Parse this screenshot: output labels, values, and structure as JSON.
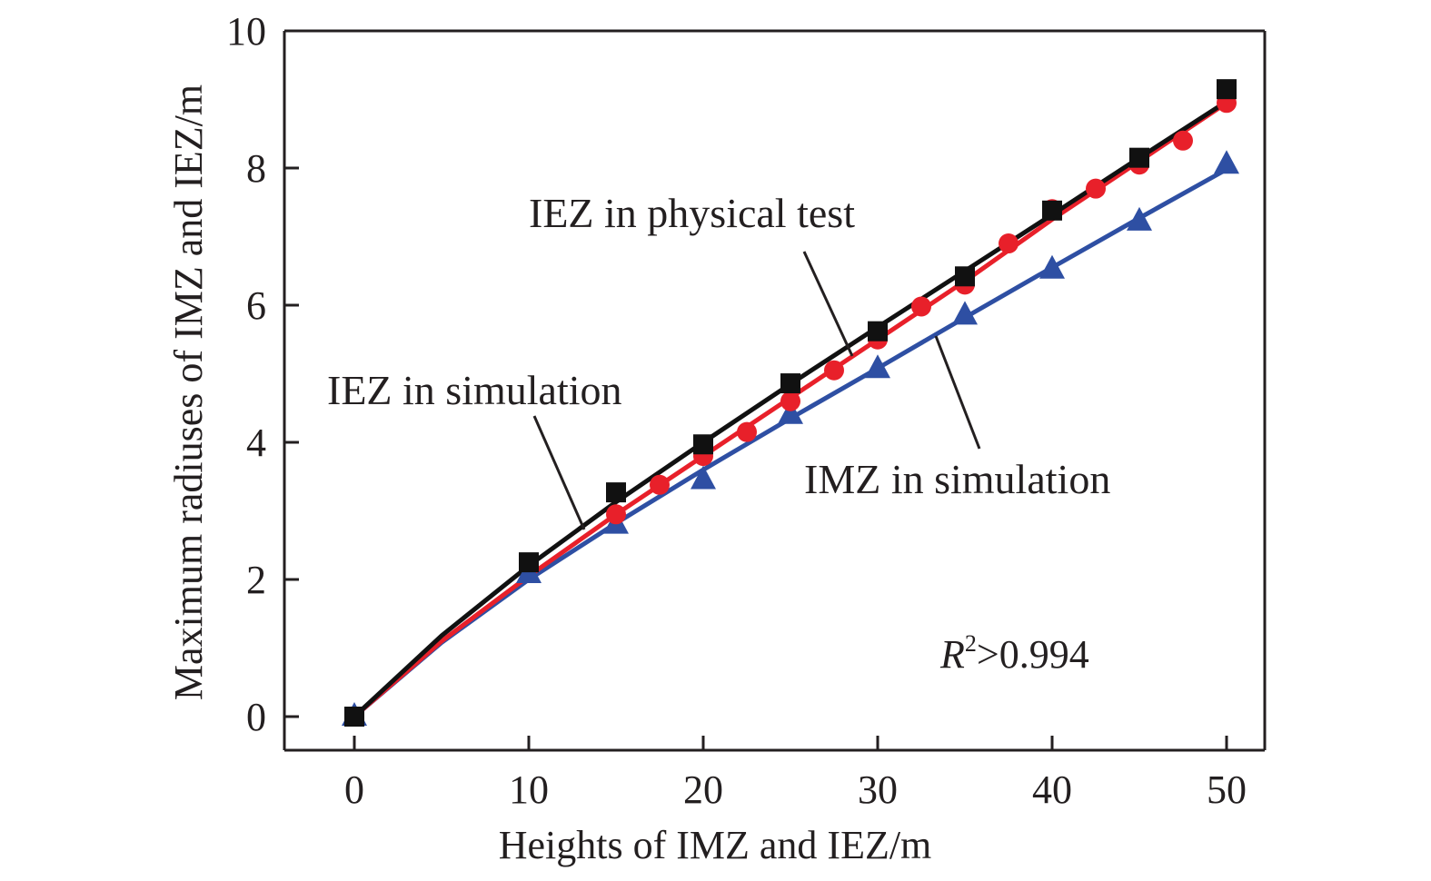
{
  "chart_data": {
    "type": "line",
    "title": "",
    "xlabel": "Heights of IMZ and IEZ/m",
    "ylabel": "Maximum radiuses of IMZ and IEZ/m",
    "xlim": [
      -4,
      52
    ],
    "ylim": [
      -0.5,
      10
    ],
    "xticks": [
      0,
      10,
      20,
      30,
      40,
      50
    ],
    "yticks": [
      0,
      2,
      4,
      6,
      8,
      10
    ],
    "xtick_labels": [
      "0",
      "10",
      "20",
      "30",
      "40",
      "50"
    ],
    "ytick_labels": [
      "0",
      "2",
      "4",
      "6",
      "8",
      "10"
    ],
    "grid": false,
    "series": [
      {
        "name": "IEZ in simulation",
        "color": "#111111",
        "marker": "square",
        "x": [
          0,
          10,
          15,
          20,
          25,
          30,
          35,
          40,
          45,
          50
        ],
        "y": [
          0,
          2.25,
          3.27,
          3.97,
          4.86,
          5.62,
          6.42,
          7.38,
          8.15,
          9.15
        ],
        "fit": [
          [
            0,
            0
          ],
          [
            5,
            1.18
          ],
          [
            10,
            2.2
          ],
          [
            15,
            3.13
          ],
          [
            20,
            4.0
          ],
          [
            25,
            4.85
          ],
          [
            30,
            5.68
          ],
          [
            35,
            6.5
          ],
          [
            40,
            7.32
          ],
          [
            45,
            8.15
          ],
          [
            50,
            8.97
          ]
        ]
      },
      {
        "name": "IEZ in physical test",
        "color": "#e8202a",
        "marker": "circle",
        "x": [
          0,
          15,
          17.5,
          20,
          22.5,
          25,
          27.5,
          30,
          32.5,
          35,
          37.5,
          40,
          42.5,
          45,
          47.5,
          50
        ],
        "y": [
          0,
          2.95,
          3.38,
          3.8,
          4.15,
          4.6,
          5.05,
          5.5,
          5.98,
          6.3,
          6.9,
          7.4,
          7.7,
          8.05,
          8.4,
          8.95
        ],
        "fit": [
          [
            0,
            0
          ],
          [
            5,
            1.1
          ],
          [
            10,
            2.05
          ],
          [
            15,
            2.95
          ],
          [
            20,
            3.8
          ],
          [
            25,
            4.65
          ],
          [
            30,
            5.5
          ],
          [
            35,
            6.35
          ],
          [
            40,
            7.25
          ],
          [
            45,
            8.1
          ],
          [
            50,
            8.95
          ]
        ]
      },
      {
        "name": "IMZ in simulation",
        "color": "#2e4fa3",
        "marker": "triangle",
        "x": [
          0,
          10,
          15,
          20,
          25,
          30,
          35,
          40,
          45,
          50
        ],
        "y": [
          0,
          2.08,
          2.8,
          3.45,
          4.4,
          5.07,
          5.85,
          6.52,
          7.22,
          8.05
        ],
        "fit": [
          [
            0,
            0
          ],
          [
            5,
            1.08
          ],
          [
            10,
            2.0
          ],
          [
            15,
            2.82
          ],
          [
            20,
            3.6
          ],
          [
            25,
            4.35
          ],
          [
            30,
            5.08
          ],
          [
            35,
            5.82
          ],
          [
            40,
            6.55
          ],
          [
            45,
            7.27
          ],
          [
            50,
            7.98
          ]
        ]
      }
    ],
    "annotations": [
      {
        "text": "IEZ in physical test",
        "points_to": "IEZ in physical test"
      },
      {
        "text": "IEZ in simulation",
        "points_to": "IEZ in simulation"
      },
      {
        "text": "IMZ in simulation",
        "points_to": "IMZ in simulation"
      }
    ],
    "r2_text": {
      "base": "R",
      "sup": "2",
      "rest": ">0.994"
    }
  }
}
